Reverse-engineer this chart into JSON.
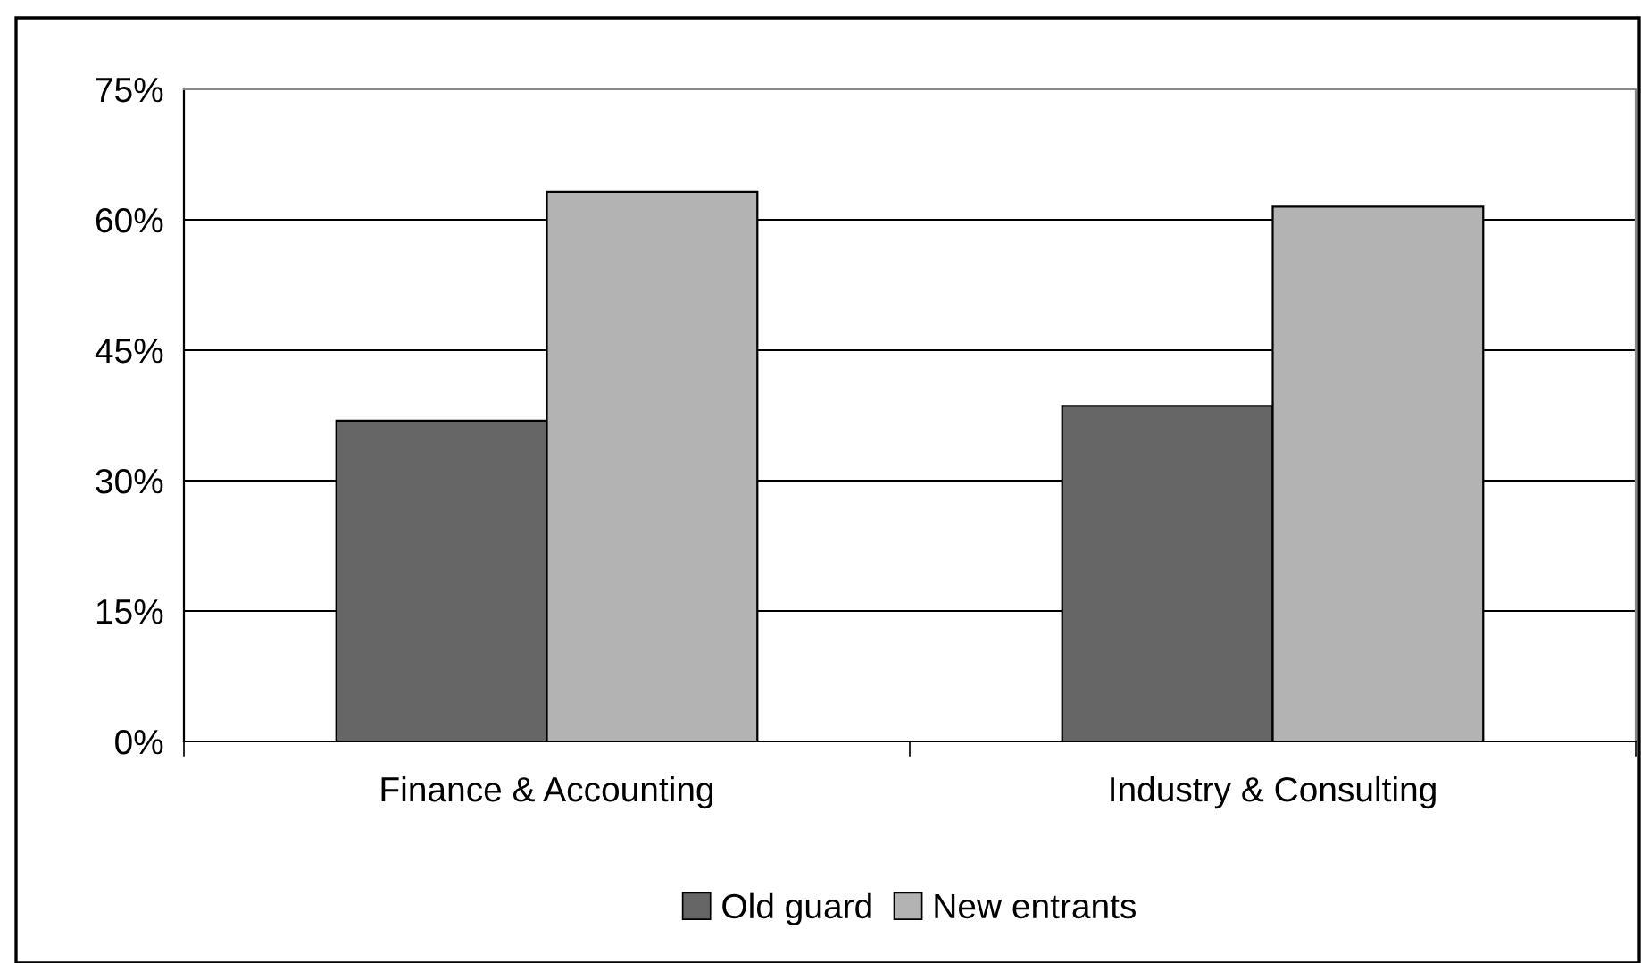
{
  "chart_data": {
    "type": "bar",
    "categories": [
      "Finance & Accounting",
      "Industry & Consulting"
    ],
    "series": [
      {
        "name": "Old guard",
        "color": "#666666",
        "values": [
          36.9,
          38.6
        ]
      },
      {
        "name": "New entrants",
        "color": "#b3b3b3",
        "values": [
          63.2,
          61.5
        ]
      }
    ],
    "ylim": [
      0,
      75
    ],
    "yticks": [
      {
        "value": 0,
        "label": "0%"
      },
      {
        "value": 15,
        "label": "15%"
      },
      {
        "value": 30,
        "label": "30%"
      },
      {
        "value": 45,
        "label": "45%"
      },
      {
        "value": 60,
        "label": "60%"
      },
      {
        "value": 75,
        "label": "75%"
      }
    ],
    "grid": "y",
    "legend": "bottom"
  }
}
